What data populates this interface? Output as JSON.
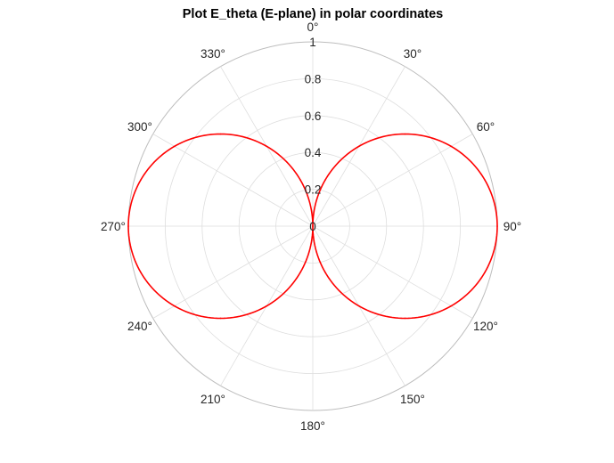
{
  "chart_data": {
    "type": "line",
    "projection": "polar",
    "title": "Plot E_theta (E-plane) in polar coordinates",
    "theta_zero_location": "top",
    "theta_direction": "clockwise",
    "theta_ticks": [
      {
        "angle": 0,
        "label": "0°"
      },
      {
        "angle": 30,
        "label": "30°"
      },
      {
        "angle": 60,
        "label": "60°"
      },
      {
        "angle": 90,
        "label": "90°"
      },
      {
        "angle": 120,
        "label": "120°"
      },
      {
        "angle": 150,
        "label": "150°"
      },
      {
        "angle": 180,
        "label": "180°"
      },
      {
        "angle": 210,
        "label": "210°"
      },
      {
        "angle": 240,
        "label": "240°"
      },
      {
        "angle": 270,
        "label": "270°"
      },
      {
        "angle": 300,
        "label": "300°"
      },
      {
        "angle": 330,
        "label": "330°"
      }
    ],
    "r_ticks": [
      {
        "value": 0,
        "label": "0"
      },
      {
        "value": 0.2,
        "label": "0.2"
      },
      {
        "value": 0.4,
        "label": "0.4"
      },
      {
        "value": 0.6,
        "label": "0.6"
      },
      {
        "value": 0.8,
        "label": "0.8"
      },
      {
        "value": 1,
        "label": "1"
      }
    ],
    "rlim": [
      0,
      1
    ],
    "grid": true,
    "series": [
      {
        "color": "#ff0000",
        "theta_deg": [
          0,
          15,
          30,
          45,
          60,
          75,
          90,
          105,
          120,
          135,
          150,
          165,
          180,
          195,
          210,
          225,
          240,
          255,
          270,
          285,
          300,
          315,
          330,
          345,
          360
        ],
        "r": [
          0,
          0.259,
          0.5,
          0.707,
          0.866,
          0.966,
          1,
          0.966,
          0.866,
          0.707,
          0.5,
          0.259,
          0,
          0.259,
          0.5,
          0.707,
          0.866,
          0.966,
          1,
          0.966,
          0.866,
          0.707,
          0.5,
          0.259,
          0
        ]
      }
    ]
  },
  "colors": {
    "grid": "#dedede",
    "outer_circle": "#bdbdbd",
    "series": "#ff0000",
    "text": "#262626"
  }
}
